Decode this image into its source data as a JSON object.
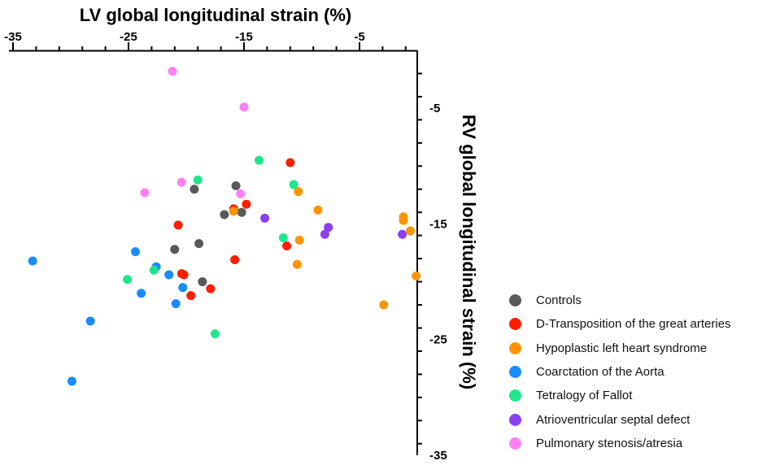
{
  "chart_data": {
    "type": "scatter",
    "xlabel": "LV global longitudinal strain (%)",
    "ylabel": "RV global longitudinal strain (%)",
    "xlim": [
      -35,
      0
    ],
    "ylim": [
      -35,
      0
    ],
    "x_axis_position": "top",
    "y_axis_position": "right",
    "x_ticks": [
      -35,
      -25,
      -15,
      -5
    ],
    "y_ticks": [
      -5,
      -15,
      -25,
      -35
    ],
    "x_tick_labels": [
      "-35",
      "-25",
      "-15",
      "-5"
    ],
    "y_tick_labels": [
      "-5",
      "-15",
      "-25",
      "-35"
    ],
    "grid": false,
    "legend_position": "bottom-right",
    "series": [
      {
        "name": "Controls",
        "color": "#595959",
        "points": [
          [
            -15.7,
            -11.7
          ],
          [
            -16.7,
            -14.2
          ],
          [
            -15.2,
            -14.0
          ],
          [
            -19.3,
            -12.0
          ],
          [
            -18.9,
            -16.7
          ],
          [
            -21.0,
            -17.2
          ],
          [
            -18.6,
            -20.0
          ]
        ]
      },
      {
        "name": "D-Transposition of the great arteries",
        "color": "#ff1f00",
        "points": [
          [
            -11.0,
            -9.7
          ],
          [
            -14.8,
            -13.3
          ],
          [
            -15.9,
            -13.7
          ],
          [
            -20.7,
            -15.1
          ],
          [
            -11.3,
            -16.9
          ],
          [
            -15.8,
            -18.1
          ],
          [
            -20.4,
            -19.3
          ],
          [
            -20.2,
            -19.4
          ],
          [
            -17.9,
            -20.6
          ],
          [
            -19.6,
            -21.2
          ]
        ]
      },
      {
        "name": "Hypoplastic left heart syndrome",
        "color": "#ff9400",
        "points": [
          [
            -10.3,
            -12.2
          ],
          [
            -8.6,
            -13.8
          ],
          [
            -15.9,
            -13.9
          ],
          [
            -1.2,
            -14.4
          ],
          [
            -1.2,
            -14.7
          ],
          [
            -0.6,
            -15.6
          ],
          [
            -10.2,
            -16.4
          ],
          [
            -10.4,
            -18.5
          ],
          [
            -0.1,
            -19.5
          ],
          [
            -2.9,
            -22.0
          ]
        ]
      },
      {
        "name": "Coarctation of the Aorta",
        "color": "#1a8cff",
        "points": [
          [
            -33.3,
            -18.2
          ],
          [
            -24.4,
            -17.4
          ],
          [
            -22.6,
            -18.7
          ],
          [
            -21.5,
            -19.4
          ],
          [
            -20.3,
            -20.5
          ],
          [
            -23.9,
            -21.0
          ],
          [
            -20.9,
            -21.9
          ],
          [
            -28.3,
            -23.4
          ],
          [
            -29.9,
            -28.6
          ]
        ]
      },
      {
        "name": "Tetralogy of Fallot",
        "color": "#1fe68c",
        "points": [
          [
            -13.7,
            -9.5
          ],
          [
            -19.0,
            -11.2
          ],
          [
            -10.7,
            -11.6
          ],
          [
            -11.6,
            -16.2
          ],
          [
            -22.8,
            -19.0
          ],
          [
            -25.1,
            -19.8
          ],
          [
            -17.5,
            -24.5
          ]
        ]
      },
      {
        "name": "Atrioventricular septal defect",
        "color": "#8c3ff2",
        "points": [
          [
            -13.2,
            -14.5
          ],
          [
            -7.7,
            -15.3
          ],
          [
            -8.0,
            -15.9
          ],
          [
            -1.3,
            -15.9
          ]
        ]
      },
      {
        "name": "Pulmonary stenosis/atresia",
        "color": "#ff80f2",
        "points": [
          [
            -21.2,
            -1.8
          ],
          [
            -15.0,
            -4.9
          ],
          [
            -20.4,
            -11.4
          ],
          [
            -15.3,
            -12.4
          ],
          [
            -23.6,
            -12.3
          ]
        ]
      }
    ]
  }
}
